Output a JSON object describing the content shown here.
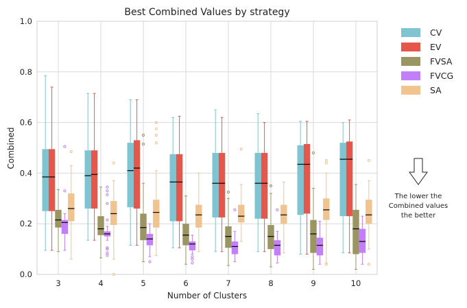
{
  "chart_data": {
    "type": "boxplot",
    "title": "Best Combined Values by strategy",
    "xlabel": "Number of Clusters",
    "ylabel": "Combined",
    "ylim": [
      0,
      1.0
    ],
    "yticks": [
      "0.0",
      "0.2",
      "0.4",
      "0.6",
      "0.8",
      "1.0"
    ],
    "categories": [
      "3",
      "4",
      "5",
      "6",
      "7",
      "8",
      "9",
      "10"
    ],
    "grid": true,
    "legend_position": "outside-right",
    "series": [
      {
        "name": "CV",
        "color": "#7fc4d0",
        "boxes": [
          {
            "whislo": 0.095,
            "q1": 0.25,
            "med": 0.385,
            "q3": 0.495,
            "whishi": 0.785,
            "fliers": []
          },
          {
            "whislo": 0.135,
            "q1": 0.26,
            "med": 0.39,
            "q3": 0.49,
            "whishi": 0.715,
            "fliers": []
          },
          {
            "whislo": 0.115,
            "q1": 0.265,
            "med": 0.41,
            "q3": 0.52,
            "whishi": 0.69,
            "fliers": []
          },
          {
            "whislo": 0.105,
            "q1": 0.21,
            "med": 0.365,
            "q3": 0.475,
            "whishi": 0.62,
            "fliers": []
          },
          {
            "whislo": 0.09,
            "q1": 0.225,
            "med": 0.36,
            "q3": 0.48,
            "whishi": 0.65,
            "fliers": []
          },
          {
            "whislo": 0.09,
            "q1": 0.22,
            "med": 0.36,
            "q3": 0.48,
            "whishi": 0.635,
            "fliers": []
          },
          {
            "whislo": 0.08,
            "q1": 0.235,
            "med": 0.435,
            "q3": 0.51,
            "whishi": 0.605,
            "fliers": []
          },
          {
            "whislo": 0.085,
            "q1": 0.23,
            "med": 0.455,
            "q3": 0.52,
            "whishi": 0.6,
            "fliers": []
          }
        ]
      },
      {
        "name": "EV",
        "color": "#e5574b",
        "boxes": [
          {
            "whislo": 0.095,
            "q1": 0.25,
            "med": 0.385,
            "q3": 0.495,
            "whishi": 0.74,
            "fliers": []
          },
          {
            "whislo": 0.135,
            "q1": 0.26,
            "med": 0.395,
            "q3": 0.49,
            "whishi": 0.715,
            "fliers": []
          },
          {
            "whislo": 0.115,
            "q1": 0.26,
            "med": 0.42,
            "q3": 0.53,
            "whishi": 0.69,
            "fliers": []
          },
          {
            "whislo": 0.105,
            "q1": 0.21,
            "med": 0.365,
            "q3": 0.475,
            "whishi": 0.625,
            "fliers": []
          },
          {
            "whislo": 0.09,
            "q1": 0.225,
            "med": 0.36,
            "q3": 0.48,
            "whishi": 0.62,
            "fliers": []
          },
          {
            "whislo": 0.09,
            "q1": 0.22,
            "med": 0.36,
            "q3": 0.48,
            "whishi": 0.6,
            "fliers": []
          },
          {
            "whislo": 0.08,
            "q1": 0.24,
            "med": 0.435,
            "q3": 0.515,
            "whishi": 0.605,
            "fliers": []
          },
          {
            "whislo": 0.085,
            "q1": 0.23,
            "med": 0.455,
            "q3": 0.525,
            "whishi": 0.61,
            "fliers": []
          }
        ]
      },
      {
        "name": "FVSA",
        "color": "#9a9563",
        "boxes": [
          {
            "whislo": 0.09,
            "q1": 0.185,
            "med": 0.215,
            "q3": 0.255,
            "whishi": 0.335,
            "fliers": []
          },
          {
            "whislo": 0.065,
            "q1": 0.155,
            "med": 0.18,
            "q3": 0.23,
            "whishi": 0.345,
            "fliers": []
          },
          {
            "whislo": 0.05,
            "q1": 0.135,
            "med": 0.185,
            "q3": 0.24,
            "whishi": 0.36,
            "fliers": [
              0.515,
              0.55
            ]
          },
          {
            "whislo": 0.04,
            "q1": 0.115,
            "med": 0.155,
            "q3": 0.2,
            "whishi": 0.31,
            "fliers": []
          },
          {
            "whislo": 0.035,
            "q1": 0.105,
            "med": 0.15,
            "q3": 0.19,
            "whishi": 0.3,
            "fliers": [
              0.325
            ]
          },
          {
            "whislo": 0.03,
            "q1": 0.1,
            "med": 0.15,
            "q3": 0.195,
            "whishi": 0.32,
            "fliers": [
              0.35
            ]
          },
          {
            "whislo": 0.02,
            "q1": 0.085,
            "med": 0.16,
            "q3": 0.215,
            "whishi": 0.34,
            "fliers": [
              0.48
            ]
          },
          {
            "whislo": 0.02,
            "q1": 0.08,
            "med": 0.18,
            "q3": 0.255,
            "whishi": 0.355,
            "fliers": []
          }
        ]
      },
      {
        "name": "FVCG",
        "color": "#c27ff7",
        "boxes": [
          {
            "whislo": 0.095,
            "q1": 0.16,
            "med": 0.205,
            "q3": 0.215,
            "whishi": 0.24,
            "fliers": [
              0.33,
              0.505
            ]
          },
          {
            "whislo": 0.135,
            "q1": 0.15,
            "med": 0.16,
            "q3": 0.17,
            "whishi": 0.19,
            "fliers": [
              0.075,
              0.085,
              0.1,
              0.105,
              0.215,
              0.28,
              0.315,
              0.33,
              0.345
            ]
          },
          {
            "whislo": 0.07,
            "q1": 0.115,
            "med": 0.14,
            "q3": 0.16,
            "whishi": 0.2,
            "fliers": [
              0.05
            ]
          },
          {
            "whislo": 0.08,
            "q1": 0.095,
            "med": 0.12,
            "q3": 0.13,
            "whishi": 0.155,
            "fliers": [
              0.045,
              0.06,
              0.07
            ]
          },
          {
            "whislo": 0.05,
            "q1": 0.08,
            "med": 0.11,
            "q3": 0.13,
            "whishi": 0.17,
            "fliers": [
              0.255
            ]
          },
          {
            "whislo": 0.045,
            "q1": 0.075,
            "med": 0.115,
            "q3": 0.135,
            "whishi": 0.17,
            "fliers": [
              0.255
            ]
          },
          {
            "whislo": 0.04,
            "q1": 0.075,
            "med": 0.115,
            "q3": 0.145,
            "whishi": 0.21,
            "fliers": []
          },
          {
            "whislo": 0.04,
            "q1": 0.085,
            "med": 0.13,
            "q3": 0.18,
            "whishi": 0.23,
            "fliers": []
          }
        ]
      },
      {
        "name": "SA",
        "color": "#f0c38f",
        "boxes": [
          {
            "whislo": 0.06,
            "q1": 0.21,
            "med": 0.26,
            "q3": 0.32,
            "whishi": 0.43,
            "fliers": [
              0.485
            ]
          },
          {
            "whislo": 0.06,
            "q1": 0.195,
            "med": 0.24,
            "q3": 0.29,
            "whishi": 0.37,
            "fliers": [
              0.0,
              0.44
            ]
          },
          {
            "whislo": 0.075,
            "q1": 0.185,
            "med": 0.245,
            "q3": 0.295,
            "whishi": 0.41,
            "fliers": [
              0.52,
              0.55,
              0.575,
              0.6
            ]
          },
          {
            "whislo": 0.09,
            "q1": 0.185,
            "med": 0.235,
            "q3": 0.275,
            "whishi": 0.4,
            "fliers": []
          },
          {
            "whislo": 0.13,
            "q1": 0.205,
            "med": 0.23,
            "q3": 0.275,
            "whishi": 0.355,
            "fliers": [
              0.495
            ]
          },
          {
            "whislo": 0.085,
            "q1": 0.2,
            "med": 0.235,
            "q3": 0.275,
            "whishi": 0.365,
            "fliers": []
          },
          {
            "whislo": 0.045,
            "q1": 0.215,
            "med": 0.255,
            "q3": 0.3,
            "whishi": 0.4,
            "fliers": [
              0.04,
              0.44,
              0.45
            ]
          },
          {
            "whislo": 0.1,
            "q1": 0.2,
            "med": 0.235,
            "q3": 0.295,
            "whishi": 0.37,
            "fliers": [
              0.04,
              0.45
            ]
          }
        ]
      }
    ],
    "annotation": {
      "lines": [
        "The lower the",
        "Combined values",
        "the better"
      ],
      "arrow": "down"
    }
  }
}
